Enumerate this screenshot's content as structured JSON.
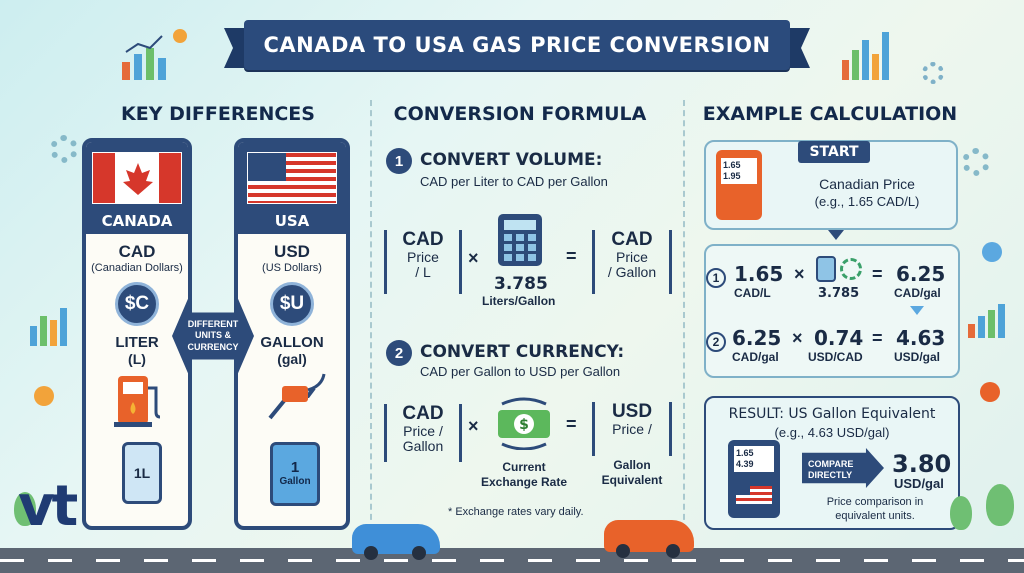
{
  "title": "CANADA TO USA GAS PRICE CONVERSION",
  "sections": {
    "left": "KEY DIFFERENCES",
    "middle": "CONVERSION FORMULA",
    "right": "EXAMPLE CALCULATION"
  },
  "canada": {
    "name": "CANADA",
    "currency": "CAD",
    "currency_full": "(Canadian Dollars)",
    "coin": "$C",
    "unit": "LITER",
    "unit_abbr": "(L)",
    "bottle": "1L"
  },
  "usa": {
    "name": "USA",
    "currency": "USD",
    "currency_full": "(US Dollars)",
    "coin": "$U",
    "unit": "GALLON",
    "unit_abbr": "(gal)",
    "jug_num": "1",
    "jug_label": "Gallon"
  },
  "diff_label": [
    "DIFFERENT",
    "UNITS &",
    "CURRENCY"
  ],
  "step1": {
    "num": "1",
    "title": "CONVERT VOLUME:",
    "desc": "CAD per Liter to CAD per Gallon",
    "left": [
      "CAD",
      "Price",
      "/ L"
    ],
    "factor": "3.785",
    "factor_label": "Liters/Gallon",
    "right": [
      "CAD",
      "Price",
      "/ Gallon"
    ]
  },
  "step2": {
    "num": "2",
    "title": "CONVERT CURRENCY:",
    "desc": "CAD per Gallon to USD per Gallon",
    "left": [
      "CAD",
      "Price /",
      "Gallon"
    ],
    "factor_label": [
      "Current",
      "Exchange Rate"
    ],
    "right": [
      "USD",
      "Price /",
      "Gallon",
      "Equivalent"
    ]
  },
  "note": "* Exchange rates vary daily.",
  "example": {
    "start": "START",
    "pump_lines": [
      "1.65",
      "1.95"
    ],
    "canadian_price": "Canadian Price",
    "canadian_eg": "(e.g., 1.65 CAD/L)",
    "row1": {
      "n": "1",
      "a": "1.65",
      "a_u": "CAD/L",
      "b": "3.785",
      "r": "6.25",
      "r_u": "CAD/gal"
    },
    "row2": {
      "n": "2",
      "a": "6.25",
      "a_u": "CAD/gal",
      "b": "0.74",
      "b_u": "USD/CAD",
      "r": "4.63",
      "r_u": "USD/gal"
    },
    "result_title": "RESULT: US Gallon Equivalent",
    "result_eg": "(e.g., 4.63 USD/gal)",
    "pump2_lines": [
      "1.65",
      "4.39"
    ],
    "compare": [
      "COMPARE",
      "DIRECTLY"
    ],
    "final": "3.80",
    "final_u": "USD/gal",
    "caption": [
      "Price comparison in",
      "equivalent units."
    ]
  },
  "logo": "vt",
  "ops": {
    "times": "×",
    "equals": "="
  },
  "colors": {
    "navy": "#2d4b7a",
    "red": "#d6372b",
    "orange": "#e8622a"
  }
}
